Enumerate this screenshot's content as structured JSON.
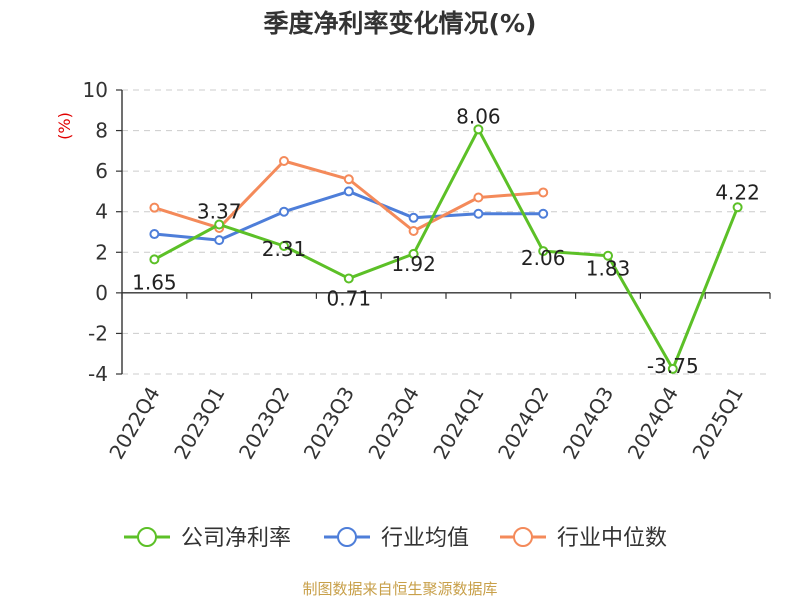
{
  "chart_data": {
    "type": "line",
    "title": "季度净利率变化情况(%)",
    "ylabel": "(%)",
    "xlabel": "",
    "categories": [
      "2022Q4",
      "2023Q1",
      "2023Q2",
      "2023Q3",
      "2023Q4",
      "2024Q1",
      "2024Q2",
      "2024Q3",
      "2024Q4",
      "2025Q1"
    ],
    "ylim": [
      -4,
      10
    ],
    "yticks": [
      10,
      8,
      6,
      4,
      2,
      0,
      -2,
      -4
    ],
    "grid": true,
    "legend_position": "bottom",
    "series": [
      {
        "name": "公司净利率",
        "color": "#5cc027",
        "show_labels": true,
        "values": [
          1.65,
          3.37,
          2.31,
          0.71,
          1.92,
          8.06,
          2.06,
          1.83,
          -3.75,
          4.22
        ]
      },
      {
        "name": "行业均值",
        "color": "#4e7ed9",
        "show_labels": false,
        "values": [
          2.9,
          2.6,
          4.0,
          5.0,
          3.7,
          3.9,
          3.9,
          null,
          null,
          null
        ]
      },
      {
        "name": "行业中位数",
        "color": "#f48a5a",
        "show_labels": false,
        "values": [
          4.2,
          3.2,
          6.5,
          5.6,
          3.05,
          4.7,
          4.95,
          null,
          null,
          null
        ]
      }
    ]
  },
  "source": "制图数据来自恒生聚源数据库"
}
